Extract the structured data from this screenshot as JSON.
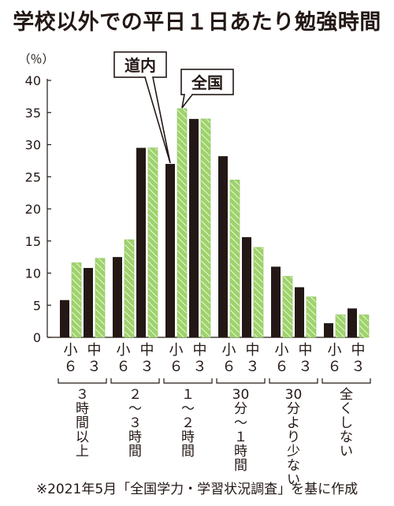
{
  "chart_data": {
    "type": "bar",
    "title": "学校以外での平日１日あたり勉強時間",
    "ylabel": "（％）",
    "ylim": [
      0,
      40
    ],
    "yticks": [
      0,
      5,
      10,
      15,
      20,
      25,
      30,
      35,
      40
    ],
    "grid": false,
    "categories": [
      "３時間以上",
      "２～３時間",
      "１～２時間",
      "30分～１時間",
      "30分より少ない",
      "全くしない"
    ],
    "category_lines": [
      [
        "３",
        "時",
        "間",
        "以",
        "上"
      ],
      [
        "２",
        "～",
        "３",
        "時",
        "間"
      ],
      [
        "１",
        "～",
        "２",
        "時",
        "間"
      ],
      [
        "30",
        "分",
        "～",
        "１",
        "時",
        "間"
      ],
      [
        "30",
        "分",
        "よ",
        "り",
        "少",
        "な",
        "い"
      ],
      [
        "全",
        "く",
        "し",
        "な",
        "い"
      ]
    ],
    "grades": [
      {
        "top": "小",
        "bottom": "６"
      },
      {
        "top": "中",
        "bottom": "３"
      }
    ],
    "series": [
      {
        "name": "道内",
        "color": "#231815",
        "values": [
          5.8,
          12.5,
          27.0,
          28.2,
          11.0,
          2.2
        ]
      },
      {
        "name": "全国",
        "color": "#9ed36a",
        "values": [
          11.6,
          15.2,
          35.6,
          24.5,
          9.5,
          3.5
        ]
      },
      {
        "name": "道内",
        "color": "#231815",
        "values": [
          10.8,
          29.5,
          34.0,
          15.6,
          7.8,
          4.5
        ]
      },
      {
        "name": "全国",
        "color": "#9ed36a",
        "values": [
          12.3,
          29.5,
          34.0,
          14.0,
          6.3,
          3.5
        ]
      }
    ],
    "callouts": [
      {
        "text": "道内",
        "series": 0,
        "category": 2
      },
      {
        "text": "全国",
        "series": 1,
        "category": 2
      }
    ]
  },
  "footnote": "※2021年5月「全国学力・学習状況調査」を基に作成"
}
